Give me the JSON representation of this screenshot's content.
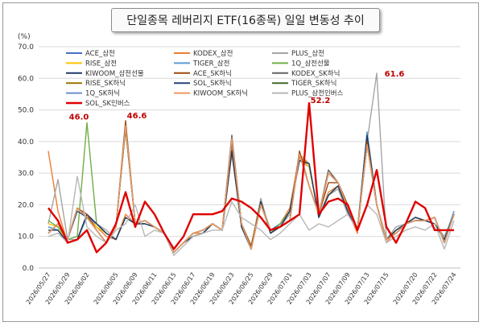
{
  "chart_data": {
    "type": "line",
    "title": "단일종목 레버리지 ETF(16종목) 일일 변동성 추이",
    "unit_label": "(%)",
    "ylim": [
      0,
      70
    ],
    "yticks": [
      "0.0",
      "10.0",
      "20.0",
      "30.0",
      "40.0",
      "50.0",
      "60.0",
      "70.0"
    ],
    "grid": true,
    "legend_position": "top-left",
    "x": [
      "2026/05/27",
      "2026/05/28",
      "2026/05/29",
      "2026/06/01",
      "2026/06/02",
      "2026/06/03",
      "2026/06/04",
      "2026/06/05",
      "2026/06/08",
      "2026/06/09",
      "2026/06/10",
      "2026/06/11",
      "2026/06/12",
      "2026/06/15",
      "2026/06/16",
      "2026/06/17",
      "2026/06/18",
      "2026/06/19",
      "2026/06/22",
      "2026/06/23",
      "2026/06/24",
      "2026/06/25",
      "2026/06/26",
      "2026/06/29",
      "2026/06/30",
      "2026/07/01",
      "2026/07/02",
      "2026/07/03",
      "2026/07/06",
      "2026/07/07",
      "2026/07/08",
      "2026/07/09",
      "2026/07/10",
      "2026/07/13",
      "2026/07/14",
      "2026/07/15",
      "2026/07/16",
      "2026/07/17",
      "2026/07/20",
      "2026/07/21",
      "2026/07/22",
      "2026/07/23",
      "2026/07/24"
    ],
    "xtick_labels": [
      "2026/05/27",
      "2026/05/29",
      "2026/06/02",
      "2026/06/05",
      "2026/06/09",
      "2026/06/11",
      "2026/06/15",
      "2026/06/17",
      "2026/06/19",
      "2026/06/23",
      "2026/06/25",
      "2026/06/29",
      "2026/07/01",
      "2026/07/03",
      "2026/07/07",
      "2026/07/09",
      "2026/07/13",
      "2026/07/15",
      "2026/07/20",
      "2026/07/22",
      "2026/07/24"
    ],
    "series": [
      {
        "name": "ACE_삼전",
        "color": "#4472c4",
        "width": 1.4,
        "values": [
          13,
          12,
          8,
          9,
          17,
          14,
          11,
          9,
          16,
          14,
          14,
          13,
          11,
          5,
          8,
          10,
          11,
          14,
          12,
          38,
          13,
          7,
          21,
          12,
          14,
          18,
          34,
          33,
          16,
          23,
          26,
          18,
          12,
          43,
          20,
          9,
          12,
          14,
          16,
          15,
          14,
          9,
          18
        ]
      },
      {
        "name": "KODEX_삼전",
        "color": "#ed7d31",
        "width": 1.4,
        "values": [
          37,
          18,
          8,
          9,
          17,
          13,
          10,
          9,
          17,
          14,
          15,
          13,
          11,
          5,
          8,
          11,
          11,
          14,
          12,
          40,
          14,
          7,
          22,
          11,
          14,
          19,
          36,
          33,
          16,
          24,
          26,
          18,
          11,
          41,
          20,
          8,
          12,
          14,
          16,
          15,
          14,
          9,
          17
        ]
      },
      {
        "name": "PLUS_삼전",
        "color": "#a5a5a5",
        "width": 1.4,
        "values": [
          14,
          28,
          9,
          9,
          16,
          14,
          12,
          9,
          16,
          14,
          15,
          13,
          11,
          5,
          8,
          10,
          11,
          14,
          12,
          36,
          14,
          6,
          22,
          11,
          13,
          17,
          34,
          32,
          17,
          23,
          25,
          17,
          12,
          40,
          61.6,
          9,
          13,
          14,
          16,
          15,
          14,
          10,
          17
        ]
      },
      {
        "name": "RISE_삼전",
        "color": "#ffc000",
        "width": 1.4,
        "values": [
          14,
          13,
          8,
          9,
          16,
          13,
          11,
          9,
          16,
          14,
          14,
          13,
          11,
          5,
          8,
          10,
          11,
          14,
          12,
          37,
          13,
          6,
          21,
          11,
          13,
          18,
          35,
          32,
          16,
          23,
          26,
          18,
          12,
          42,
          20,
          9,
          12,
          14,
          16,
          15,
          14,
          9,
          17
        ]
      },
      {
        "name": "TIGER_삼전",
        "color": "#5b9bd5",
        "width": 1.4,
        "values": [
          13,
          12,
          8,
          9,
          16,
          14,
          11,
          9,
          16,
          14,
          14,
          13,
          11,
          5,
          8,
          10,
          11,
          14,
          12,
          38,
          13,
          6,
          21,
          11,
          14,
          18,
          35,
          33,
          16,
          23,
          26,
          18,
          12,
          43,
          20,
          9,
          12,
          14,
          16,
          15,
          14,
          9,
          18
        ]
      },
      {
        "name": "1Q_삼전선물",
        "color": "#70ad47",
        "width": 1.4,
        "values": [
          15,
          13,
          9,
          10,
          46,
          14,
          11,
          9,
          16,
          14,
          15,
          13,
          11,
          5,
          8,
          10,
          11,
          14,
          12,
          37,
          14,
          7,
          21,
          11,
          14,
          18,
          35,
          33,
          16,
          23,
          26,
          18,
          12,
          42,
          20,
          9,
          12,
          14,
          16,
          15,
          14,
          9,
          17
        ]
      },
      {
        "name": "KIWOOM_삼전선물",
        "color": "#1f3864",
        "width": 1.4,
        "values": [
          12,
          12,
          8,
          9,
          17,
          14,
          11,
          9,
          16,
          14,
          14,
          13,
          11,
          5,
          8,
          10,
          11,
          14,
          12,
          37,
          13,
          6,
          21,
          11,
          13,
          18,
          34,
          33,
          16,
          23,
          26,
          18,
          12,
          42,
          20,
          9,
          12,
          14,
          16,
          15,
          14,
          9,
          17
        ]
      },
      {
        "name": "ACE_SK하닉",
        "color": "#9e480e",
        "width": 1.4,
        "values": [
          11,
          14,
          9,
          19,
          17,
          12,
          8,
          13,
          46.6,
          14,
          15,
          13,
          11,
          5,
          8,
          11,
          12,
          14,
          12,
          40,
          14,
          7,
          20,
          12,
          13,
          15,
          37,
          26,
          17,
          27,
          27,
          20,
          12,
          40,
          20,
          9,
          11,
          14,
          15,
          15,
          16,
          8,
          17
        ]
      },
      {
        "name": "KODEX_SK하닉",
        "color": "#636363",
        "width": 1.4,
        "values": [
          11,
          14,
          9,
          19,
          16,
          12,
          8,
          13,
          45,
          14,
          15,
          13,
          11,
          5,
          8,
          11,
          12,
          14,
          12,
          42,
          14,
          6,
          20,
          12,
          13,
          15,
          36,
          26,
          17,
          31,
          27,
          19,
          12,
          39,
          20,
          9,
          11,
          14,
          15,
          15,
          16,
          8,
          17
        ]
      },
      {
        "name": "RISE_SK하닉",
        "color": "#997300",
        "width": 1.4,
        "values": [
          11,
          14,
          9,
          19,
          16,
          12,
          8,
          13,
          44,
          14,
          15,
          13,
          11,
          5,
          8,
          11,
          12,
          14,
          12,
          41,
          14,
          6,
          20,
          12,
          13,
          15,
          36,
          26,
          17,
          30,
          27,
          19,
          12,
          39,
          20,
          9,
          11,
          14,
          15,
          15,
          16,
          8,
          17
        ]
      },
      {
        "name": "SOL_SK하닉",
        "color": "#264478",
        "width": 1.4,
        "values": [
          11,
          14,
          9,
          18,
          16,
          12,
          8,
          13,
          45,
          14,
          15,
          13,
          11,
          5,
          8,
          11,
          12,
          14,
          12,
          41,
          14,
          6,
          20,
          12,
          13,
          15,
          36,
          26,
          17,
          30,
          27,
          19,
          12,
          39,
          20,
          9,
          11,
          14,
          15,
          15,
          16,
          8,
          17
        ]
      },
      {
        "name": "TIGER_SK하닉",
        "color": "#43682b",
        "width": 1.4,
        "values": [
          11,
          14,
          9,
          19,
          16,
          12,
          8,
          13,
          44,
          14,
          15,
          13,
          11,
          5,
          8,
          11,
          12,
          14,
          12,
          41,
          14,
          6,
          20,
          12,
          13,
          15,
          36,
          26,
          17,
          30,
          27,
          19,
          12,
          39,
          20,
          9,
          11,
          14,
          15,
          15,
          16,
          8,
          17
        ]
      },
      {
        "name": "1Q_SK하닉",
        "color": "#698ed0",
        "width": 1.4,
        "values": [
          11,
          14,
          9,
          19,
          16,
          12,
          8,
          13,
          45,
          14,
          15,
          13,
          11,
          5,
          8,
          11,
          12,
          14,
          12,
          41,
          14,
          6,
          20,
          12,
          13,
          15,
          36,
          26,
          17,
          30,
          27,
          19,
          12,
          39,
          20,
          9,
          11,
          14,
          15,
          15,
          16,
          8,
          17
        ]
      },
      {
        "name": "KIWOOM_SK하닉",
        "color": "#f1975a",
        "width": 1.4,
        "values": [
          11,
          14,
          9,
          19,
          16,
          12,
          8,
          13,
          45,
          14,
          15,
          13,
          11,
          5,
          8,
          11,
          12,
          14,
          12,
          41,
          14,
          6,
          20,
          12,
          13,
          15,
          36,
          26,
          17,
          30,
          27,
          19,
          12,
          39,
          20,
          9,
          11,
          14,
          15,
          15,
          16,
          8,
          17
        ]
      },
      {
        "name": "PLUS_삼전인버스",
        "color": "#b7b7b7",
        "width": 1.4,
        "values": [
          10,
          11,
          8,
          29,
          13,
          10,
          8,
          12,
          14,
          20,
          10,
          12,
          11,
          4,
          7,
          10,
          11,
          12,
          12,
          21,
          16,
          14,
          12,
          9,
          11,
          14,
          17,
          12,
          14,
          13,
          15,
          17,
          12,
          20,
          17,
          8,
          10,
          12,
          13,
          12,
          14,
          6,
          15
        ]
      },
      {
        "name": "SOL_SK인버스",
        "color": "#e00000",
        "width": 2.4,
        "values": [
          19,
          15,
          8,
          9,
          12,
          5,
          8,
          14,
          24,
          13,
          21,
          17,
          11,
          6,
          10,
          17,
          17,
          17,
          18,
          22,
          21,
          19,
          16,
          12,
          13,
          15,
          17,
          52.2,
          17,
          21,
          22,
          20,
          12,
          20,
          31,
          13,
          8,
          14,
          21,
          19,
          12,
          12,
          12
        ]
      }
    ],
    "annotations": [
      {
        "text": "46.0",
        "series": "1Q_삼전선물",
        "x": "2026/06/02"
      },
      {
        "text": "46.6",
        "series": "ACE_SK하닉",
        "x": "2026/06/08"
      },
      {
        "text": "52.2",
        "series": "SOL_SK인버스",
        "x": "2026/07/03"
      },
      {
        "text": "61.6",
        "series": "PLUS_삼전",
        "x": "2026/07/14"
      }
    ]
  }
}
